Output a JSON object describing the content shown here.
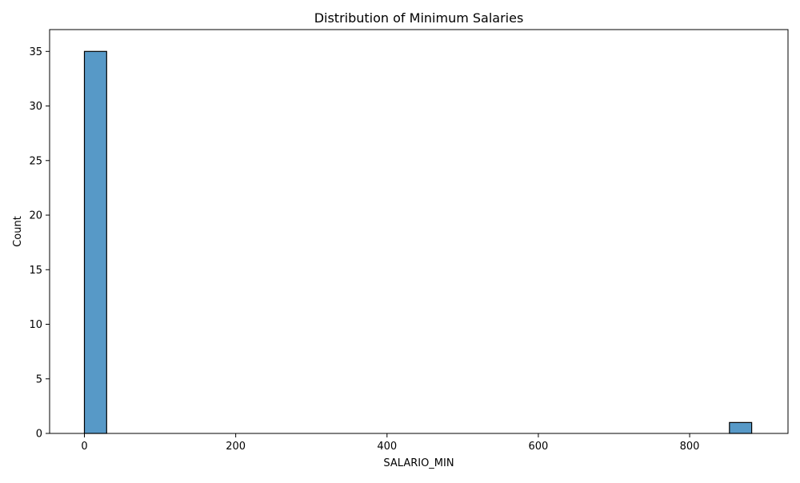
{
  "chart_data": {
    "type": "bar",
    "title": "Distribution of Minimum Salaries",
    "xlabel": "SALARIO_MIN",
    "ylabel": "Count",
    "bins": [
      {
        "x0": 0,
        "x1": 29.4,
        "count": 35
      },
      {
        "x0": 852.6,
        "x1": 882,
        "count": 1
      }
    ],
    "xlim": [
      -46,
      930
    ],
    "ylim": [
      0,
      37
    ],
    "xticks": [
      0,
      200,
      400,
      600,
      800
    ],
    "yticks": [
      0,
      5,
      10,
      15,
      20,
      25,
      30,
      35
    ],
    "grid": false,
    "legend": "none",
    "bar_color": "#5799c7",
    "edge_color": "#000000"
  }
}
